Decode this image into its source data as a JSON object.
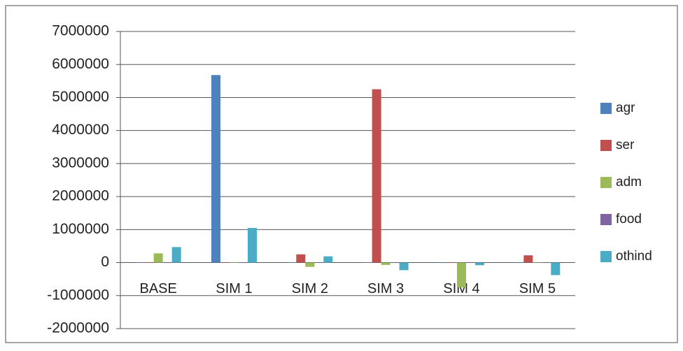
{
  "chart_data": {
    "type": "bar",
    "categories": [
      "BASE",
      "SIM 1",
      "SIM 2",
      "SIM 3",
      "SIM 4",
      "SIM 5"
    ],
    "series": [
      {
        "name": "agr",
        "color": "#4f81bd",
        "values": [
          10000,
          5680000,
          10000,
          10000,
          -10000,
          -10000
        ]
      },
      {
        "name": "ser",
        "color": "#c0504d",
        "values": [
          10000,
          10000,
          250000,
          5250000,
          0,
          220000
        ]
      },
      {
        "name": "adm",
        "color": "#9bbb59",
        "values": [
          280000,
          10000,
          -130000,
          -70000,
          -750000,
          0
        ]
      },
      {
        "name": "food",
        "color": "#8064a2",
        "values": [
          0,
          0,
          0,
          0,
          0,
          0
        ]
      },
      {
        "name": "othind",
        "color": "#4bacc6",
        "values": [
          470000,
          1050000,
          190000,
          -230000,
          -80000,
          -380000
        ]
      }
    ],
    "ylim": [
      -2000000,
      7000000
    ],
    "yticks": [
      -2000000,
      -1000000,
      0,
      1000000,
      2000000,
      3000000,
      4000000,
      5000000,
      6000000,
      7000000
    ],
    "grid": true,
    "legend": "right"
  }
}
